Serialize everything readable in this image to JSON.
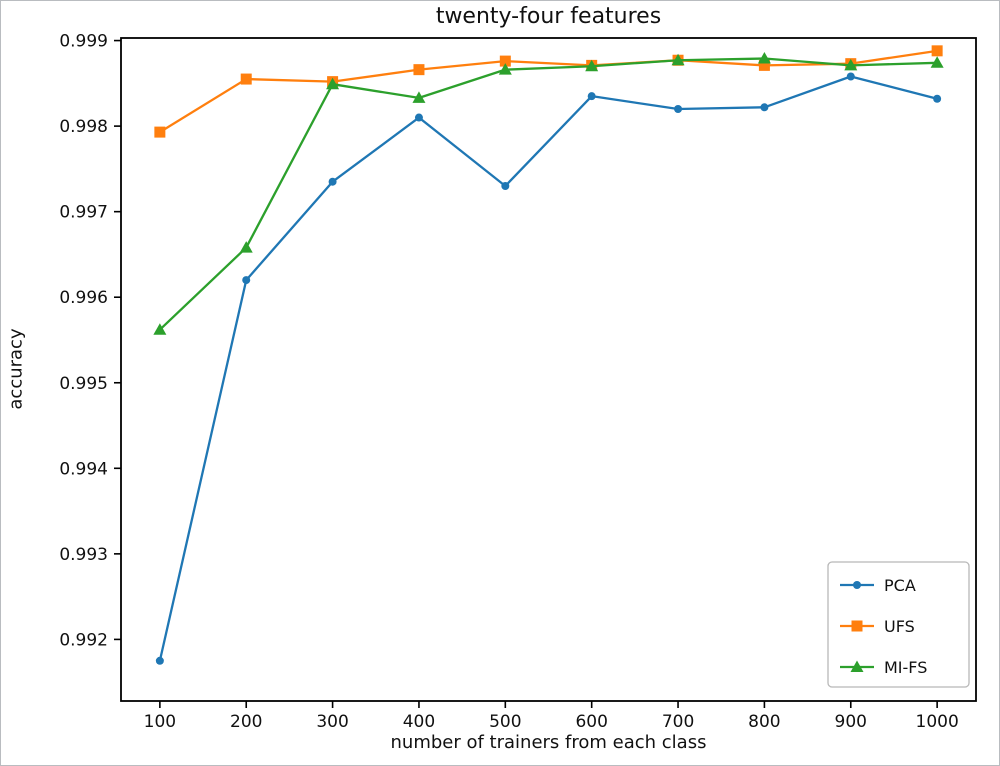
{
  "chart_data": {
    "type": "line",
    "title": "twenty-four features",
    "xlabel": "number of trainers from each class",
    "ylabel": "accuracy",
    "x": [
      100,
      200,
      300,
      400,
      500,
      600,
      700,
      800,
      900,
      1000
    ],
    "xticks": [
      100,
      200,
      300,
      400,
      500,
      600,
      700,
      800,
      900,
      1000
    ],
    "yticks": [
      0.992,
      0.993,
      0.994,
      0.995,
      0.996,
      0.997,
      0.998,
      0.999
    ],
    "xlim": [
      55,
      1045
    ],
    "ylim": [
      0.99128,
      0.99903
    ],
    "grid": false,
    "legend_position": "lower right",
    "series": [
      {
        "name": "PCA",
        "color": "#1f77b4",
        "marker": "circle",
        "values": [
          0.99175,
          0.9962,
          0.99735,
          0.9981,
          0.9973,
          0.99835,
          0.9982,
          0.99822,
          0.99858,
          0.99832
        ]
      },
      {
        "name": "UFS",
        "color": "#ff7f0e",
        "marker": "square",
        "values": [
          0.99793,
          0.99855,
          0.99852,
          0.99866,
          0.99876,
          0.99871,
          0.99877,
          0.99871,
          0.99873,
          0.99888
        ]
      },
      {
        "name": "MI-FS",
        "color": "#2ca02c",
        "marker": "triangle",
        "values": [
          0.99562,
          0.99658,
          0.99849,
          0.99833,
          0.99866,
          0.9987,
          0.99877,
          0.99879,
          0.99871,
          0.99874
        ]
      }
    ]
  }
}
